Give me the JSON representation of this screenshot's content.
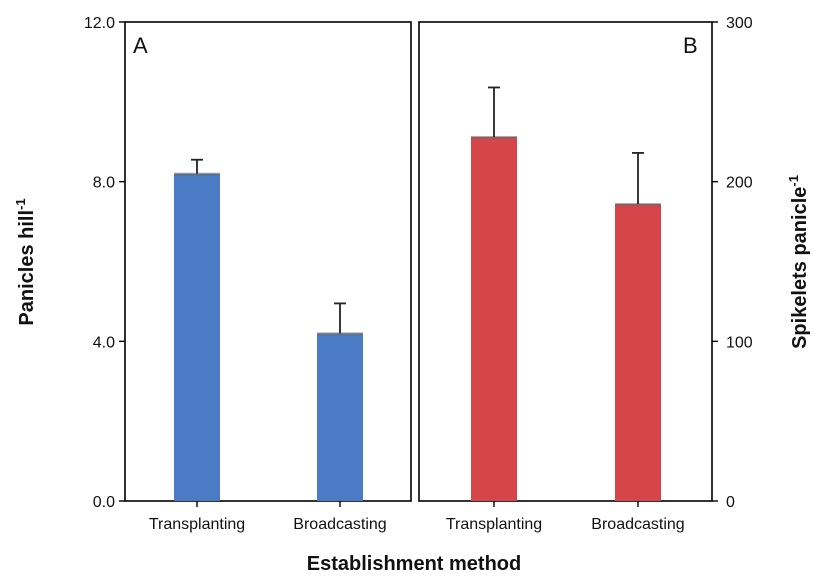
{
  "colors": {
    "panel_a_bar": "#4a7bc4",
    "panel_b_bar": "#d6454a",
    "error_bar": "#222222",
    "axis": "#000000"
  },
  "shared_xlabel": "Establishment method",
  "chart_data": [
    {
      "type": "bar",
      "panel": "A",
      "categories": [
        "Transplanting",
        "Broadcasting"
      ],
      "values": [
        8.2,
        4.2
      ],
      "errors": [
        0.35,
        0.75
      ],
      "ylabel": "Panicles hill",
      "ylabel_sup": "-1",
      "ylim": [
        0,
        12
      ],
      "yticks": [
        0,
        4,
        8,
        12
      ],
      "ytick_labels": [
        "0.0",
        "4.0",
        "8.0",
        "12.0"
      ],
      "y_axis_side": "left",
      "grid": false
    },
    {
      "type": "bar",
      "panel": "B",
      "categories": [
        "Transplanting",
        "Broadcasting"
      ],
      "values": [
        228,
        186
      ],
      "errors": [
        31,
        32
      ],
      "ylabel": "Spikelets panicle",
      "ylabel_sup": "-1",
      "ylim": [
        0,
        300
      ],
      "yticks": [
        0,
        100,
        200,
        300
      ],
      "ytick_labels": [
        "0",
        "100",
        "200",
        "300"
      ],
      "y_axis_side": "right",
      "grid": false
    }
  ]
}
